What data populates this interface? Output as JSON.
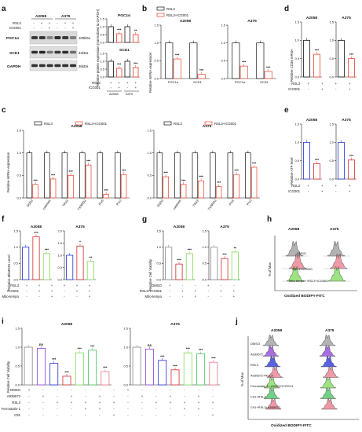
{
  "panels": {
    "a": "a",
    "b": "b",
    "c": "c",
    "d": "d",
    "e": "e",
    "f": "f",
    "g": "g",
    "h": "h",
    "i": "i",
    "j": "j"
  },
  "palette": {
    "rsl3": "#111111",
    "icg": "#e8402a",
    "blue": "#1f2dd6",
    "red": "#d6282a",
    "lime": "#7ed957",
    "gray": "#888888",
    "purple": "#8a3fd6",
    "pink": "#e8758a",
    "green": "#43c25e"
  },
  "panel_a": {
    "cells": [
      "A2058",
      "A375"
    ],
    "rows": [
      {
        "label": "RSL3",
        "signs": [
          "-",
          "+",
          "+",
          "-",
          "+",
          "+"
        ]
      },
      {
        "label": "ICG001",
        "signs": [
          "-",
          "-",
          "+",
          "-",
          "-",
          "+"
        ]
      }
    ],
    "blots": [
      {
        "name": "PGC1α",
        "kda": "100kDa"
      },
      {
        "name": "SCD1",
        "kda": "42kDa"
      },
      {
        "name": "GAPDH",
        "kda": "36kDa"
      }
    ],
    "ylabel": "Relative protein expression (normalized to GAPDH)",
    "sub1": "PGC1α",
    "sub2": "SCD1",
    "bottom_rows": [
      {
        "label": "RSL3",
        "signs": [
          "+",
          "+",
          "+",
          "+"
        ]
      },
      {
        "label": "ICG001",
        "signs": [
          "-",
          "+",
          "-",
          "+"
        ]
      }
    ]
  },
  "panel_b": {
    "legend": [
      "RSL3",
      "RSL3+ICG001"
    ],
    "ylabel": "Relative mRNA expression"
  },
  "panel_c": {
    "legend": [
      "RSL3",
      "RSL3+ICG001"
    ],
    "ylabel": "Relative mRNA expression"
  },
  "panel_d": {
    "ylabel": "Relative CD36 mRNA",
    "rows": [
      {
        "label": "RSL3",
        "signs": [
          "+",
          "+",
          "+",
          "+"
        ]
      },
      {
        "label": "ICG001",
        "signs": [
          "-",
          "+",
          "-",
          "+"
        ]
      }
    ]
  },
  "panel_e": {
    "ylabel": "Relative ATP level",
    "rows": [
      {
        "label": "RSL3",
        "signs": [
          "+",
          "+",
          "+",
          "+"
        ]
      },
      {
        "label": "ICG001",
        "signs": [
          "-",
          "+",
          "-",
          "+"
        ]
      }
    ]
  },
  "panel_f": {
    "ylabel": "Relative MitoROS Level",
    "rows": [
      {
        "label": "RSL3",
        "signs": [
          "+",
          "+",
          "+",
          "+",
          "+",
          "+"
        ]
      },
      {
        "label": "ICG001",
        "signs": [
          "-",
          "+",
          "+",
          "-",
          "+",
          "+"
        ]
      },
      {
        "label": "Mito-tempo",
        "signs": [
          "-",
          "-",
          "+",
          "-",
          "-",
          "+"
        ]
      }
    ]
  },
  "panel_g": {
    "ylabel": "Relative Cell Viability",
    "rows": [
      {
        "label": "DMSO",
        "signs": [
          "+",
          "-",
          "-",
          "+",
          "-",
          "-"
        ]
      },
      {
        "label": "RSL3+ICG001",
        "signs": [
          "-",
          "+",
          "+",
          "-",
          "+",
          "+"
        ]
      },
      {
        "label": "Mito-tempo",
        "signs": [
          "-",
          "-",
          "+",
          "-",
          "-",
          "+"
        ]
      }
    ]
  },
  "panel_h": {
    "ylabel": "% of Max",
    "xlabel": "Oxidized BODIPY-FITC",
    "cells": [
      "A2058",
      "A375"
    ],
    "labels": [
      "DMSO",
      "RSL3+ICG001",
      "Mito-tempo+ RSL3+ICG001"
    ]
  },
  "panel_i": {
    "ylabel": "Relative Cell Viability",
    "rows": [
      {
        "label": "DMSO",
        "signs": [
          "+",
          "-",
          "-",
          "-",
          "-",
          "-",
          "-",
          "+",
          "-",
          "-",
          "-",
          "-",
          "-",
          "-"
        ]
      },
      {
        "label": "A939572",
        "signs": [
          "-",
          "+",
          "-",
          "+",
          "-",
          "+",
          "-",
          "-",
          "+",
          "-",
          "+",
          "-",
          "+",
          "-"
        ]
      },
      {
        "label": "RSL3",
        "signs": [
          "-",
          "-",
          "+",
          "+",
          "+",
          "+",
          "+",
          "-",
          "-",
          "+",
          "+",
          "+",
          "+",
          "+"
        ]
      },
      {
        "label": "Ferrostatin-1",
        "signs": [
          "-",
          "-",
          "-",
          "-",
          "+",
          "+",
          "-",
          "-",
          "-",
          "-",
          "-",
          "+",
          "+",
          "-"
        ]
      },
      {
        "label": "C91",
        "signs": [
          "-",
          "-",
          "-",
          "-",
          "-",
          "-",
          "+",
          "-",
          "-",
          "-",
          "-",
          "-",
          "-",
          "+"
        ]
      }
    ]
  },
  "panel_j": {
    "ylabel": "% of Max",
    "xlabel": "Oxidized BODIPY-FITC",
    "cells": [
      "A2058",
      "A375"
    ],
    "labels": [
      "DMSO",
      "A939572",
      "RSL3",
      "A939572+RSL3",
      "Ferrostatin-1+ A939572+RSL3",
      "C91+RSL3",
      "C91+RSL3+A939572"
    ]
  },
  "chart_data": [
    {
      "id": "a_pgc1a",
      "type": "bar",
      "categories": [
        "A2058 RSL3",
        "A2058 RSL3+ICG001",
        "A375 RSL3",
        "A375 RSL3+ICG001"
      ],
      "values": [
        1.0,
        0.55,
        1.0,
        0.5
      ],
      "ylim": [
        0,
        1.5
      ],
      "yticks": [
        "0.0",
        "0.5",
        "1.0",
        "1.5"
      ],
      "sig": [
        "",
        "***",
        "",
        "**"
      ]
    },
    {
      "id": "a_scd1",
      "type": "bar",
      "categories": [
        "A2058 RSL3",
        "A2058 RSL3+ICG001",
        "A375 RSL3",
        "A375 RSL3+ICG001"
      ],
      "values": [
        1.0,
        0.55,
        1.0,
        0.6
      ],
      "ylim": [
        0,
        1.5
      ],
      "yticks": [
        "0.0",
        "0.5",
        "1.0",
        "1.5"
      ],
      "sig": [
        "",
        "***",
        "",
        "***"
      ]
    },
    {
      "id": "b_a2058",
      "title": "A2058",
      "type": "bar",
      "categories": [
        "PGC1α",
        "SCD1"
      ],
      "series": [
        {
          "name": "RSL3",
          "values": [
            1.0,
            1.0
          ]
        },
        {
          "name": "RSL3+ICG001",
          "values": [
            0.55,
            0.12
          ]
        }
      ],
      "ylim": [
        0,
        1.5
      ],
      "yticks": [
        "0.0",
        "0.5",
        "1.0",
        "1.5"
      ],
      "sig": [
        "***",
        "***"
      ]
    },
    {
      "id": "b_a375",
      "title": "A375",
      "type": "bar",
      "categories": [
        "PGC1α",
        "SCD1"
      ],
      "series": [
        {
          "name": "RSL3",
          "values": [
            1.0,
            1.0
          ]
        },
        {
          "name": "RSL3+ICG001",
          "values": [
            0.35,
            0.2
          ]
        }
      ],
      "ylim": [
        0,
        1.5
      ],
      "yticks": [
        "0.0",
        "0.5",
        "1.0",
        "1.5"
      ],
      "sig": [
        "***",
        "***"
      ]
    },
    {
      "id": "c_a2058",
      "title": "A2058",
      "type": "bar",
      "categories": [
        "SOD2",
        "catalase",
        "TRX2",
        "TXNRD2",
        "Prx5",
        "Prx3"
      ],
      "series": [
        {
          "name": "RSL3",
          "values": [
            1,
            1,
            1,
            1,
            1,
            1
          ]
        },
        {
          "name": "RSL3+ICG001",
          "values": [
            0.3,
            0.42,
            0.5,
            0.73,
            0.08,
            0.52
          ]
        }
      ],
      "ylim": [
        0,
        1.5
      ],
      "yticks": [
        "0.0",
        "0.5",
        "1.0",
        "1.5"
      ],
      "sig": [
        "***",
        "***",
        "***",
        "***",
        "***",
        "***"
      ]
    },
    {
      "id": "c_a375",
      "title": "A375",
      "type": "bar",
      "categories": [
        "SOD2",
        "catalase",
        "TRX2",
        "TXNRD2",
        "Prx5",
        "Prx3"
      ],
      "series": [
        {
          "name": "RSL3",
          "values": [
            1,
            1,
            1,
            1,
            1,
            1
          ]
        },
        {
          "name": "RSL3+ICG001",
          "values": [
            0.47,
            0.3,
            0.38,
            0.25,
            0.52,
            0.68
          ]
        }
      ],
      "ylim": [
        0,
        1.5
      ],
      "yticks": [
        "0.0",
        "0.5",
        "1.0",
        "1.5"
      ],
      "sig": [
        "***",
        "***",
        "***",
        "***",
        "***",
        "***"
      ]
    },
    {
      "id": "d_a2058",
      "title": "A2058",
      "type": "bar",
      "categories": [
        "RSL3",
        "RSL3+ICG001"
      ],
      "values": [
        1.0,
        0.62
      ],
      "ylim": [
        0,
        1.5
      ],
      "yticks": [
        "0.0",
        "0.5",
        "1.0",
        "1.5"
      ],
      "sig": [
        "",
        "***"
      ]
    },
    {
      "id": "d_a375",
      "title": "A375",
      "type": "bar",
      "categories": [
        "RSL3",
        "RSL3+ICG001"
      ],
      "values": [
        1.0,
        0.5
      ],
      "ylim": [
        0,
        1.5
      ],
      "yticks": [
        "0.0",
        "0.5",
        "1.0",
        "1.5"
      ],
      "sig": [
        "",
        "***"
      ]
    },
    {
      "id": "e_a2058",
      "title": "A2058",
      "type": "bar",
      "categories": [
        "RSL3",
        "RSL3+ICG001"
      ],
      "values": [
        1.0,
        0.42
      ],
      "ylim": [
        0,
        1.5
      ],
      "yticks": [
        "0.0",
        "0.5",
        "1.0",
        "1.5"
      ],
      "sig": [
        "",
        "***"
      ]
    },
    {
      "id": "e_a375",
      "title": "A375",
      "type": "bar",
      "categories": [
        "RSL3",
        "RSL3+ICG001"
      ],
      "values": [
        1.0,
        0.52
      ],
      "ylim": [
        0,
        1.5
      ],
      "yticks": [
        "0.0",
        "0.5",
        "1.0",
        "1.5"
      ],
      "sig": [
        "",
        "***"
      ]
    },
    {
      "id": "f_a2058",
      "title": "A2058",
      "type": "bar",
      "categories": [
        "RSL3",
        "RSL3+ICG001",
        "RSL3+ICG001+Mito-tempo"
      ],
      "values": [
        1.0,
        1.32,
        0.8
      ],
      "ylim": [
        0,
        1.5
      ],
      "yticks": [
        "0.0",
        "0.5",
        "1.0",
        "1.5"
      ],
      "sig": [
        "",
        "***",
        "***"
      ]
    },
    {
      "id": "f_a375",
      "title": "A375",
      "type": "bar",
      "categories": [
        "RSL3",
        "RSL3+ICG001",
        "RSL3+ICG001+Mito-tempo"
      ],
      "values": [
        1.0,
        1.38,
        0.75
      ],
      "ylim": [
        0,
        2.0
      ],
      "yticks": [
        "0.0",
        "0.5",
        "1.0",
        "1.5",
        "2.0"
      ],
      "sig": [
        "",
        "*",
        "**"
      ]
    },
    {
      "id": "g_a2058",
      "title": "A2058",
      "type": "bar",
      "categories": [
        "DMSO",
        "RSL3+ICG001",
        "RSL3+ICG001+Mito-tempo"
      ],
      "values": [
        1.0,
        0.48,
        0.8
      ],
      "ylim": [
        0,
        1.5
      ],
      "yticks": [
        "0.0",
        "0.5",
        "1.0",
        "1.5"
      ],
      "sig": [
        "",
        "***",
        "***"
      ]
    },
    {
      "id": "g_a375",
      "title": "A375",
      "type": "bar",
      "categories": [
        "DMSO",
        "RSL3+ICG001",
        "RSL3+ICG001+Mito-tempo"
      ],
      "values": [
        1.0,
        0.65,
        0.85
      ],
      "ylim": [
        0,
        1.5
      ],
      "yticks": [
        "0.0",
        "0.5",
        "1.0",
        "1.5"
      ],
      "sig": [
        "",
        "***",
        "**"
      ]
    },
    {
      "id": "i_a2058",
      "title": "A2058",
      "type": "bar",
      "categories": [
        "1",
        "2",
        "3",
        "4",
        "5",
        "6",
        "7"
      ],
      "values": [
        1.0,
        0.97,
        0.57,
        0.23,
        0.85,
        0.92,
        0.35
      ],
      "ylim": [
        0,
        1.5
      ],
      "yticks": [
        "0.0",
        "0.5",
        "1.0",
        "1.5"
      ],
      "sig": [
        "",
        "ns",
        "***",
        "***",
        "***",
        "***",
        "***"
      ]
    },
    {
      "id": "i_a375",
      "title": "A375",
      "type": "bar",
      "categories": [
        "1",
        "2",
        "3",
        "4",
        "5",
        "6",
        "7"
      ],
      "values": [
        1.0,
        0.95,
        0.65,
        0.4,
        0.85,
        0.82,
        0.6
      ],
      "ylim": [
        0,
        1.5
      ],
      "yticks": [
        "0.0",
        "0.5",
        "1.0",
        "1.5"
      ],
      "sig": [
        "",
        "ns",
        "***",
        "***",
        "***",
        "***",
        "***"
      ]
    }
  ]
}
